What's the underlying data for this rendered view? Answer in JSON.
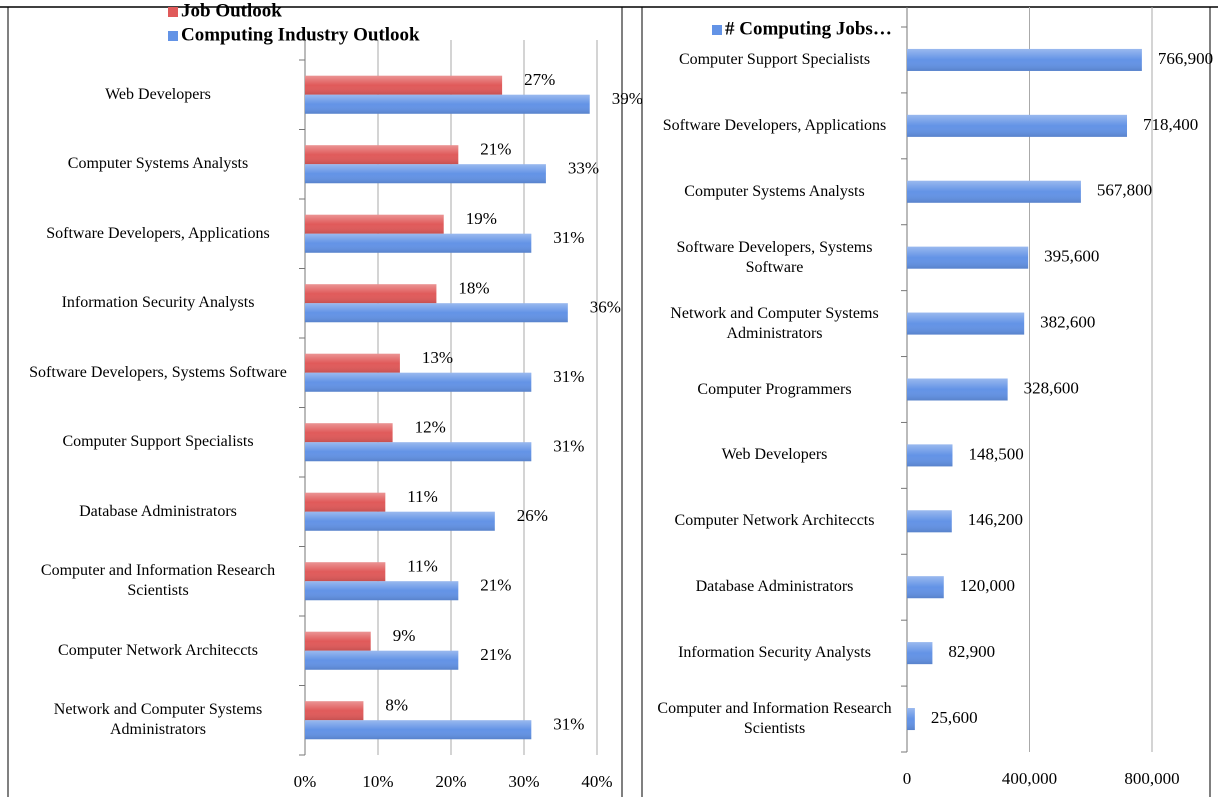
{
  "chart_data": [
    {
      "type": "bar",
      "orientation": "horizontal",
      "legend": "upper left",
      "categories": [
        "Web Developers",
        "Computer Systems Analysts",
        "Software Developers, Applications",
        "Information Security Analysts",
        "Software Developers, Systems Software",
        "Computer Support Specialists",
        "Database Administrators",
        "Computer and Information Research Scientists",
        "Computer Network Architeccts",
        "Network and Computer Systems Administrators"
      ],
      "series": [
        {
          "name": "Job Outlook",
          "color": "#e05a5a",
          "values": [
            27,
            21,
            19,
            18,
            13,
            12,
            11,
            11,
            9,
            8
          ],
          "value_labels": [
            "27%",
            "21%",
            "19%",
            "18%",
            "13%",
            "12%",
            "11%",
            "11%",
            "9%",
            "8%"
          ]
        },
        {
          "name": "Computing Industry Outlook",
          "color": "#6393e6",
          "values": [
            39,
            33,
            31,
            36,
            31,
            31,
            26,
            21,
            21,
            31
          ],
          "value_labels": [
            "39%",
            "33%",
            "31%",
            "36%",
            "31%",
            "31%",
            "26%",
            "21%",
            "21%",
            "31%"
          ]
        }
      ],
      "xlim": [
        0,
        40
      ],
      "xticks": [
        {
          "value": 0,
          "label": "0%"
        },
        {
          "value": 10,
          "label": "10%"
        },
        {
          "value": 20,
          "label": "20%"
        },
        {
          "value": 30,
          "label": "30%"
        },
        {
          "value": 40,
          "label": "40%"
        }
      ],
      "grid": true
    },
    {
      "type": "bar",
      "orientation": "horizontal",
      "legend": "upper left",
      "categories": [
        "Computer Support Specialists",
        "Software Developers, Applications",
        "Computer Systems Analysts",
        "Software Developers, Systems Software",
        "Network and Computer Systems Administrators",
        "Computer Programmers",
        "Web Developers",
        "Computer Network Architeccts",
        "Database Administrators",
        "Information Security Analysts",
        "Computer and Information Research Scientists"
      ],
      "series": [
        {
          "name": "# Computing Jobs…",
          "color": "#6393e6",
          "values": [
            766900,
            718400,
            567800,
            395600,
            382600,
            328600,
            148500,
            146200,
            120000,
            82900,
            25600
          ],
          "value_labels": [
            "766,900",
            "718,400",
            "567,800",
            "395,600",
            "382,600",
            "328,600",
            "148,500",
            "146,200",
            "120,000",
            "82,900",
            "25,600"
          ]
        }
      ],
      "xlim": [
        0,
        800000
      ],
      "xticks": [
        0,
        {
          "value": 400000,
          "label": "400,000"
        },
        {
          "value": 800000,
          "label": "800,000"
        }
      ],
      "grid": true
    }
  ]
}
